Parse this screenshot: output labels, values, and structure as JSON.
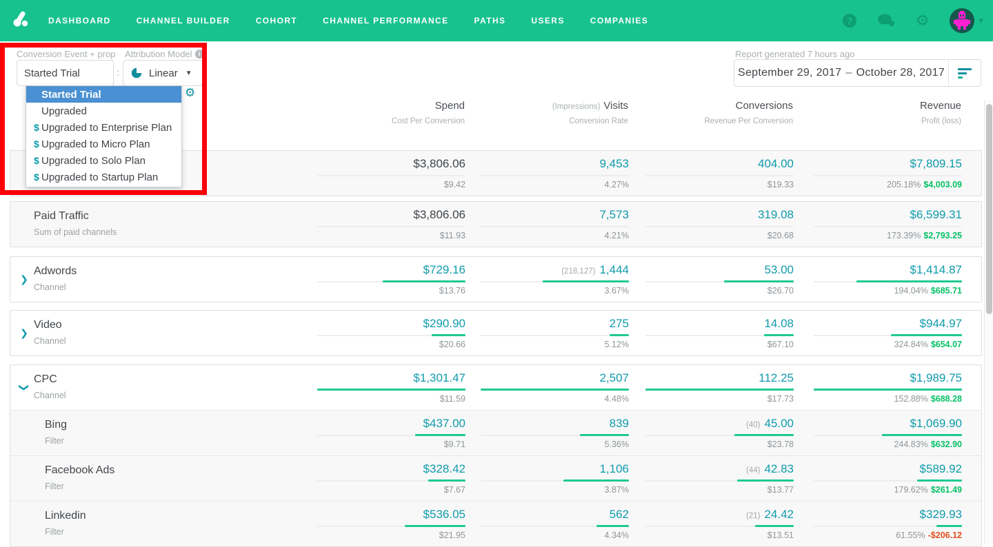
{
  "nav": {
    "items": [
      "DASHBOARD",
      "CHANNEL BUILDER",
      "COHORT",
      "CHANNEL PERFORMANCE",
      "PATHS",
      "USERS",
      "COMPANIES"
    ],
    "help_glyph": "?",
    "gear_glyph": "⚙",
    "caret_glyph": "▾"
  },
  "filters": {
    "conversion_event_label": "Conversion Event  + prop",
    "conversion_event_value": "Started Trial",
    "separator": ":",
    "attribution_model_label": "Attribution Model",
    "attribution_model_value": "Linear",
    "attribution_caret": "▼",
    "info_glyph": "i",
    "dropdown_items": [
      {
        "label": "Started Trial",
        "dollar": false,
        "selected": true
      },
      {
        "label": "Upgraded",
        "dollar": false,
        "selected": false
      },
      {
        "label": "Upgraded to Enterprise Plan",
        "dollar": true,
        "selected": false
      },
      {
        "label": "Upgraded to Micro Plan",
        "dollar": true,
        "selected": false
      },
      {
        "label": "Upgraded to Solo Plan",
        "dollar": true,
        "selected": false
      },
      {
        "label": "Upgraded to Startup Plan",
        "dollar": true,
        "selected": false
      }
    ]
  },
  "report": {
    "generated_label": "Report generated 7 hours ago",
    "date_start": "September 29, 2017",
    "date_separator": "–",
    "date_end": "October 28, 2017"
  },
  "colors": {
    "nav_green": "#17c28e",
    "teal_value": "#0f9bab",
    "bar_green": "#1ec990",
    "profit_green": "#06c167",
    "loss_red": "#e04e1d",
    "highlight_blue": "#4a90d2",
    "annotation_red": "#fb0007"
  },
  "table": {
    "headers": [
      {
        "pre": "",
        "main": "Spend",
        "sub": "Cost Per Conversion"
      },
      {
        "pre": "(Impressions)",
        "main": "Visits",
        "sub": "Conversion Rate"
      },
      {
        "pre": "",
        "main": "Conversions",
        "sub": "Revenue Per Conversion"
      },
      {
        "pre": "",
        "main": "Revenue",
        "sub": "Profit (loss)"
      }
    ],
    "cards": [
      {
        "margin": "",
        "rows": [
          {
            "name": "",
            "subtitle": "",
            "chevron": null,
            "child": false,
            "gray": true,
            "spend": {
              "value": "$3,806.06",
              "sub": "$9.42",
              "bar": null,
              "dark": true
            },
            "visits": {
              "pre": "",
              "value": "9,453",
              "sub": "4.27%",
              "bar": null
            },
            "conversions": {
              "pre": "",
              "value": "404.00",
              "sub": "$19.33",
              "bar": null
            },
            "revenue": {
              "value": "$7,809.15",
              "pct": "205.18%",
              "amount": "$4,003.09",
              "negative": false,
              "bar": null
            }
          }
        ]
      },
      {
        "margin": "m7",
        "rows": [
          {
            "name": "Paid Traffic",
            "subtitle": "Sum of paid channels",
            "chevron": null,
            "child": false,
            "gray": true,
            "spend": {
              "value": "$3,806.06",
              "sub": "$11.93",
              "bar": null,
              "dark": true
            },
            "visits": {
              "pre": "",
              "value": "7,573",
              "sub": "4.21%",
              "bar": null
            },
            "conversions": {
              "pre": "",
              "value": "319.08",
              "sub": "$20.68",
              "bar": null
            },
            "revenue": {
              "value": "$6,599.31",
              "pct": "173.39%",
              "amount": "$2,793.25",
              "negative": false,
              "bar": null
            }
          }
        ]
      },
      {
        "margin": "m13",
        "rows": [
          {
            "name": "Adwords",
            "subtitle": "Channel",
            "chevron": "right",
            "child": false,
            "gray": false,
            "spend": {
              "value": "$729.16",
              "sub": "$13.76",
              "bar": 0.56,
              "dark": false
            },
            "visits": {
              "pre": "(218,127)",
              "value": "1,444",
              "sub": "3.67%",
              "bar": 0.58
            },
            "conversions": {
              "pre": "",
              "value": "53.00",
              "sub": "$26.70",
              "bar": 0.47
            },
            "revenue": {
              "value": "$1,414.87",
              "pct": "194.04%",
              "amount": "$685.71",
              "negative": false,
              "bar": 0.71
            }
          }
        ]
      },
      {
        "margin": "m11",
        "rows": [
          {
            "name": "Video",
            "subtitle": "Channel",
            "chevron": "right",
            "child": false,
            "gray": false,
            "spend": {
              "value": "$290.90",
              "sub": "$20.66",
              "bar": 0.23,
              "dark": false
            },
            "visits": {
              "pre": "",
              "value": "275",
              "sub": "5.12%",
              "bar": 0.13
            },
            "conversions": {
              "pre": "",
              "value": "14.08",
              "sub": "$67.10",
              "bar": 0.2
            },
            "revenue": {
              "value": "$944.97",
              "pct": "324.84%",
              "amount": "$654.07",
              "negative": false,
              "bar": 0.48
            }
          }
        ]
      },
      {
        "margin": "m12",
        "rows": [
          {
            "name": "CPC",
            "subtitle": "Channel",
            "chevron": "down",
            "child": false,
            "gray": false,
            "spend": {
              "value": "$1,301.47",
              "sub": "$11.59",
              "bar": 1,
              "dark": false
            },
            "visits": {
              "pre": "",
              "value": "2,507",
              "sub": "4.48%",
              "bar": 1
            },
            "conversions": {
              "pre": "",
              "value": "112.25",
              "sub": "$17.73",
              "bar": 1
            },
            "revenue": {
              "value": "$1,989.75",
              "pct": "152.88%",
              "amount": "$688.28",
              "negative": false,
              "bar": 1
            }
          },
          {
            "name": "Bing",
            "subtitle": "Filter",
            "chevron": null,
            "child": true,
            "gray": true,
            "spend": {
              "value": "$437.00",
              "sub": "$9.71",
              "bar": 0.34,
              "dark": false
            },
            "visits": {
              "pre": "",
              "value": "839",
              "sub": "5.36%",
              "bar": 0.33
            },
            "conversions": {
              "pre": "(40)",
              "value": "45.00",
              "sub": "$23.78",
              "bar": 0.4
            },
            "revenue": {
              "value": "$1,069.90",
              "pct": "244.83%",
              "amount": "$632.90",
              "negative": false,
              "bar": 0.54
            }
          },
          {
            "name": "Facebook Ads",
            "subtitle": "Filter",
            "chevron": null,
            "child": true,
            "gray": true,
            "spend": {
              "value": "$328.42",
              "sub": "$7.67",
              "bar": 0.25,
              "dark": false
            },
            "visits": {
              "pre": "",
              "value": "1,106",
              "sub": "3.87%",
              "bar": 0.44
            },
            "conversions": {
              "pre": "(44)",
              "value": "42.83",
              "sub": "$13.77",
              "bar": 0.38
            },
            "revenue": {
              "value": "$589.92",
              "pct": "179.62%",
              "amount": "$261.49",
              "negative": false,
              "bar": 0.3
            }
          },
          {
            "name": "Linkedin",
            "subtitle": "Filter",
            "chevron": null,
            "child": true,
            "gray": true,
            "spend": {
              "value": "$536.05",
              "sub": "$21.95",
              "bar": 0.41,
              "dark": false
            },
            "visits": {
              "pre": "",
              "value": "562",
              "sub": "4.34%",
              "bar": 0.22
            },
            "conversions": {
              "pre": "(21)",
              "value": "24.42",
              "sub": "$13.51",
              "bar": 0.26
            },
            "revenue": {
              "value": "$329.93",
              "pct": "61.55%",
              "amount": "-$206.12",
              "negative": true,
              "bar": 0.17
            }
          }
        ]
      }
    ]
  }
}
